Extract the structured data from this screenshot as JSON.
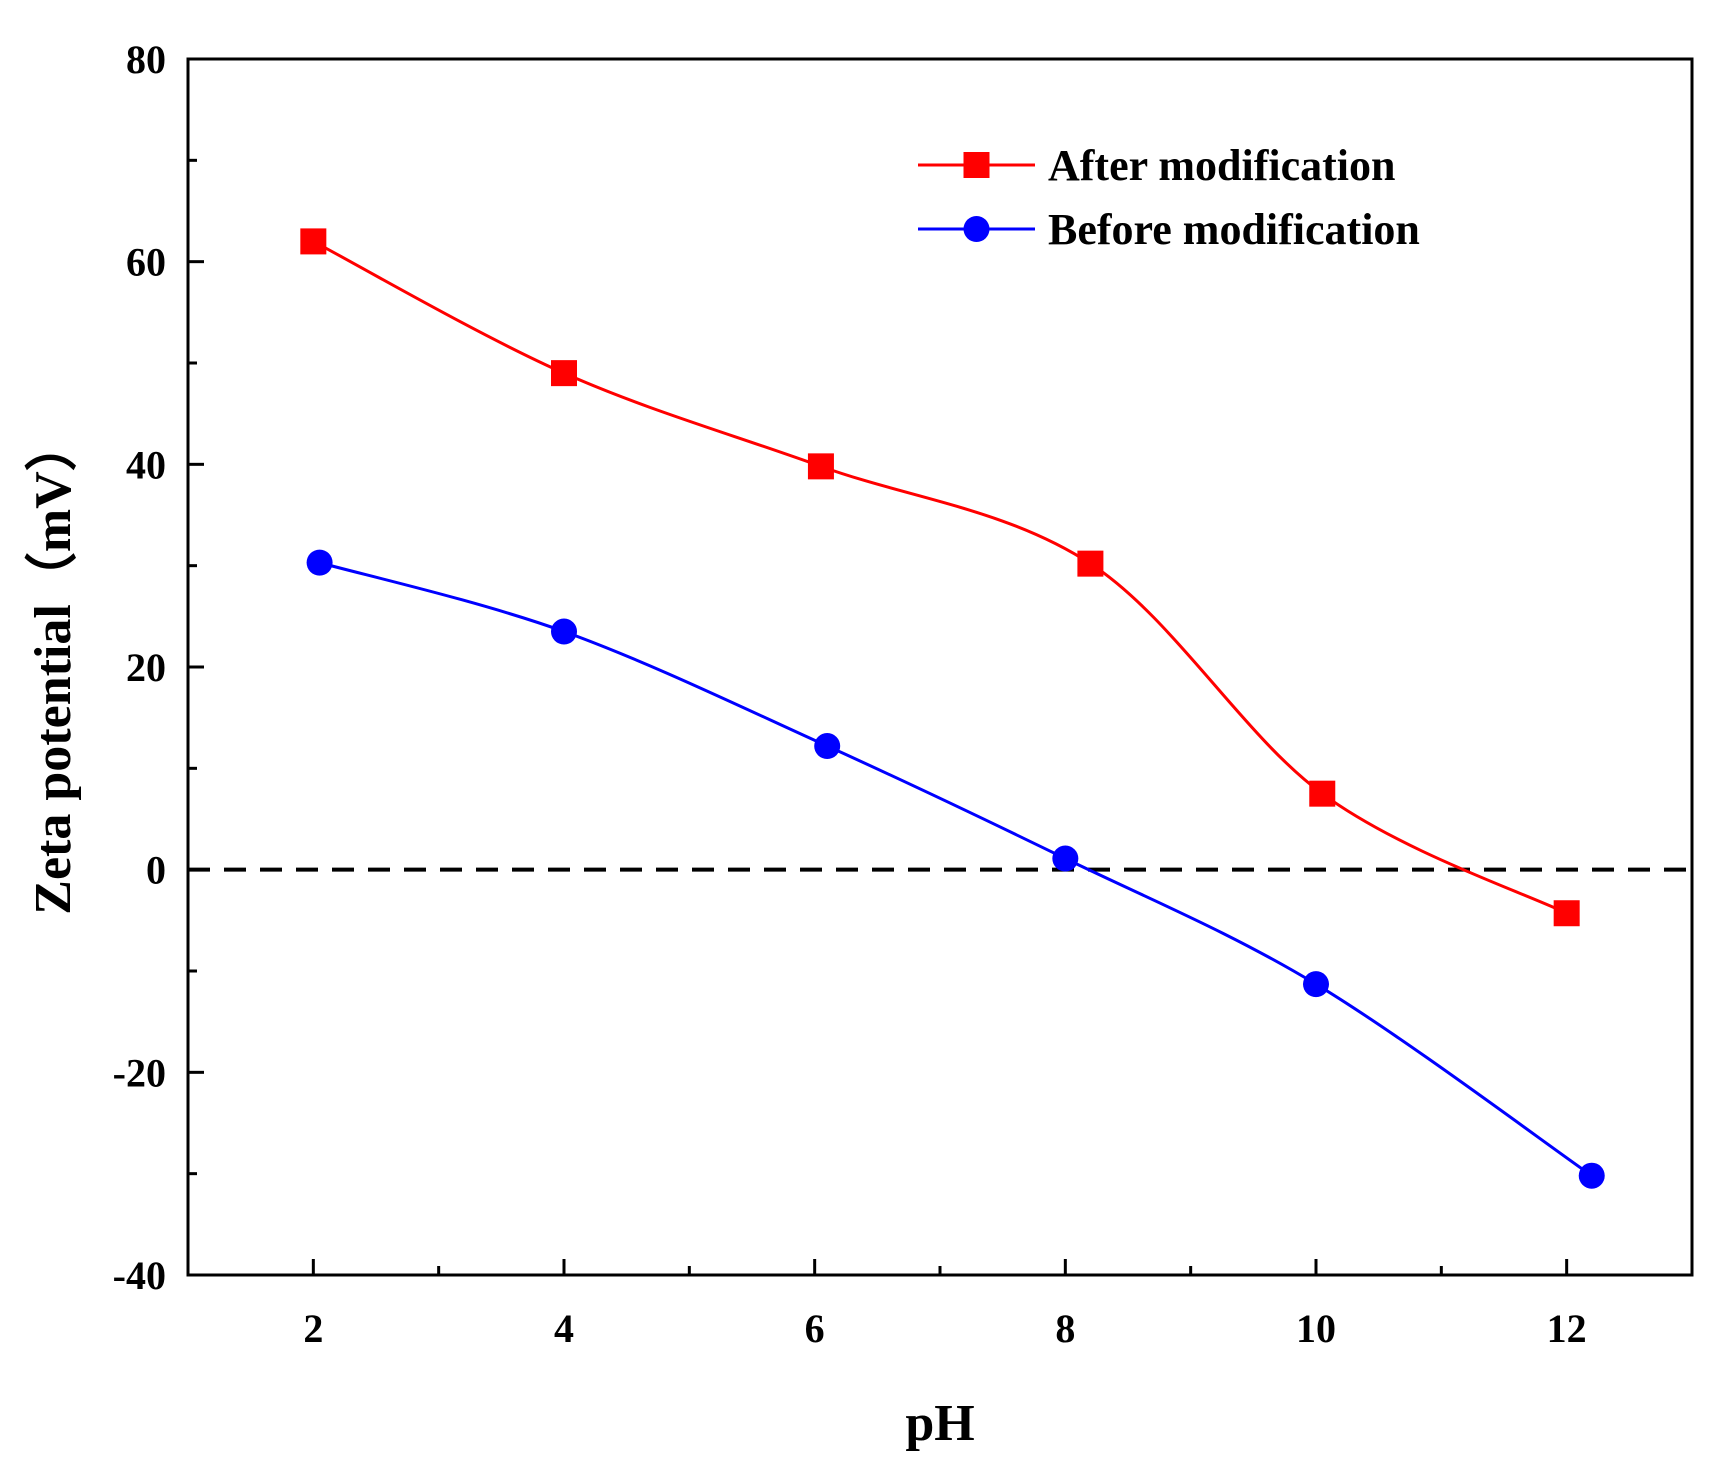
{
  "chart_data": {
    "type": "line",
    "title": "",
    "xlabel": "pH",
    "ylabel": "Zeta potential（mV）",
    "xlim": [
      1,
      13
    ],
    "ylim": [
      -40,
      80
    ],
    "x_ticks": [
      "2",
      "4",
      "6",
      "8",
      "10",
      "12"
    ],
    "y_ticks": [
      "-40",
      "-20",
      "0",
      "20",
      "40",
      "60",
      "80"
    ],
    "reference_line": {
      "y": 0,
      "style": "dashed",
      "color": "#000000"
    },
    "legend_position": "top-right",
    "grid": false,
    "series": [
      {
        "name": "After modification",
        "marker": "square",
        "color": "#ff0000",
        "x": [
          2.0,
          4.0,
          6.05,
          8.2,
          10.05,
          12.0
        ],
        "y": [
          62,
          49,
          39.8,
          30.2,
          7.5,
          -4.3
        ]
      },
      {
        "name": "Before modification",
        "marker": "circle",
        "color": "#0000ff",
        "x": [
          2.05,
          4.0,
          6.1,
          8.0,
          10.0,
          12.2
        ],
        "y": [
          30.3,
          23.5,
          12.2,
          1.1,
          -11.3,
          -30.2
        ]
      }
    ]
  }
}
